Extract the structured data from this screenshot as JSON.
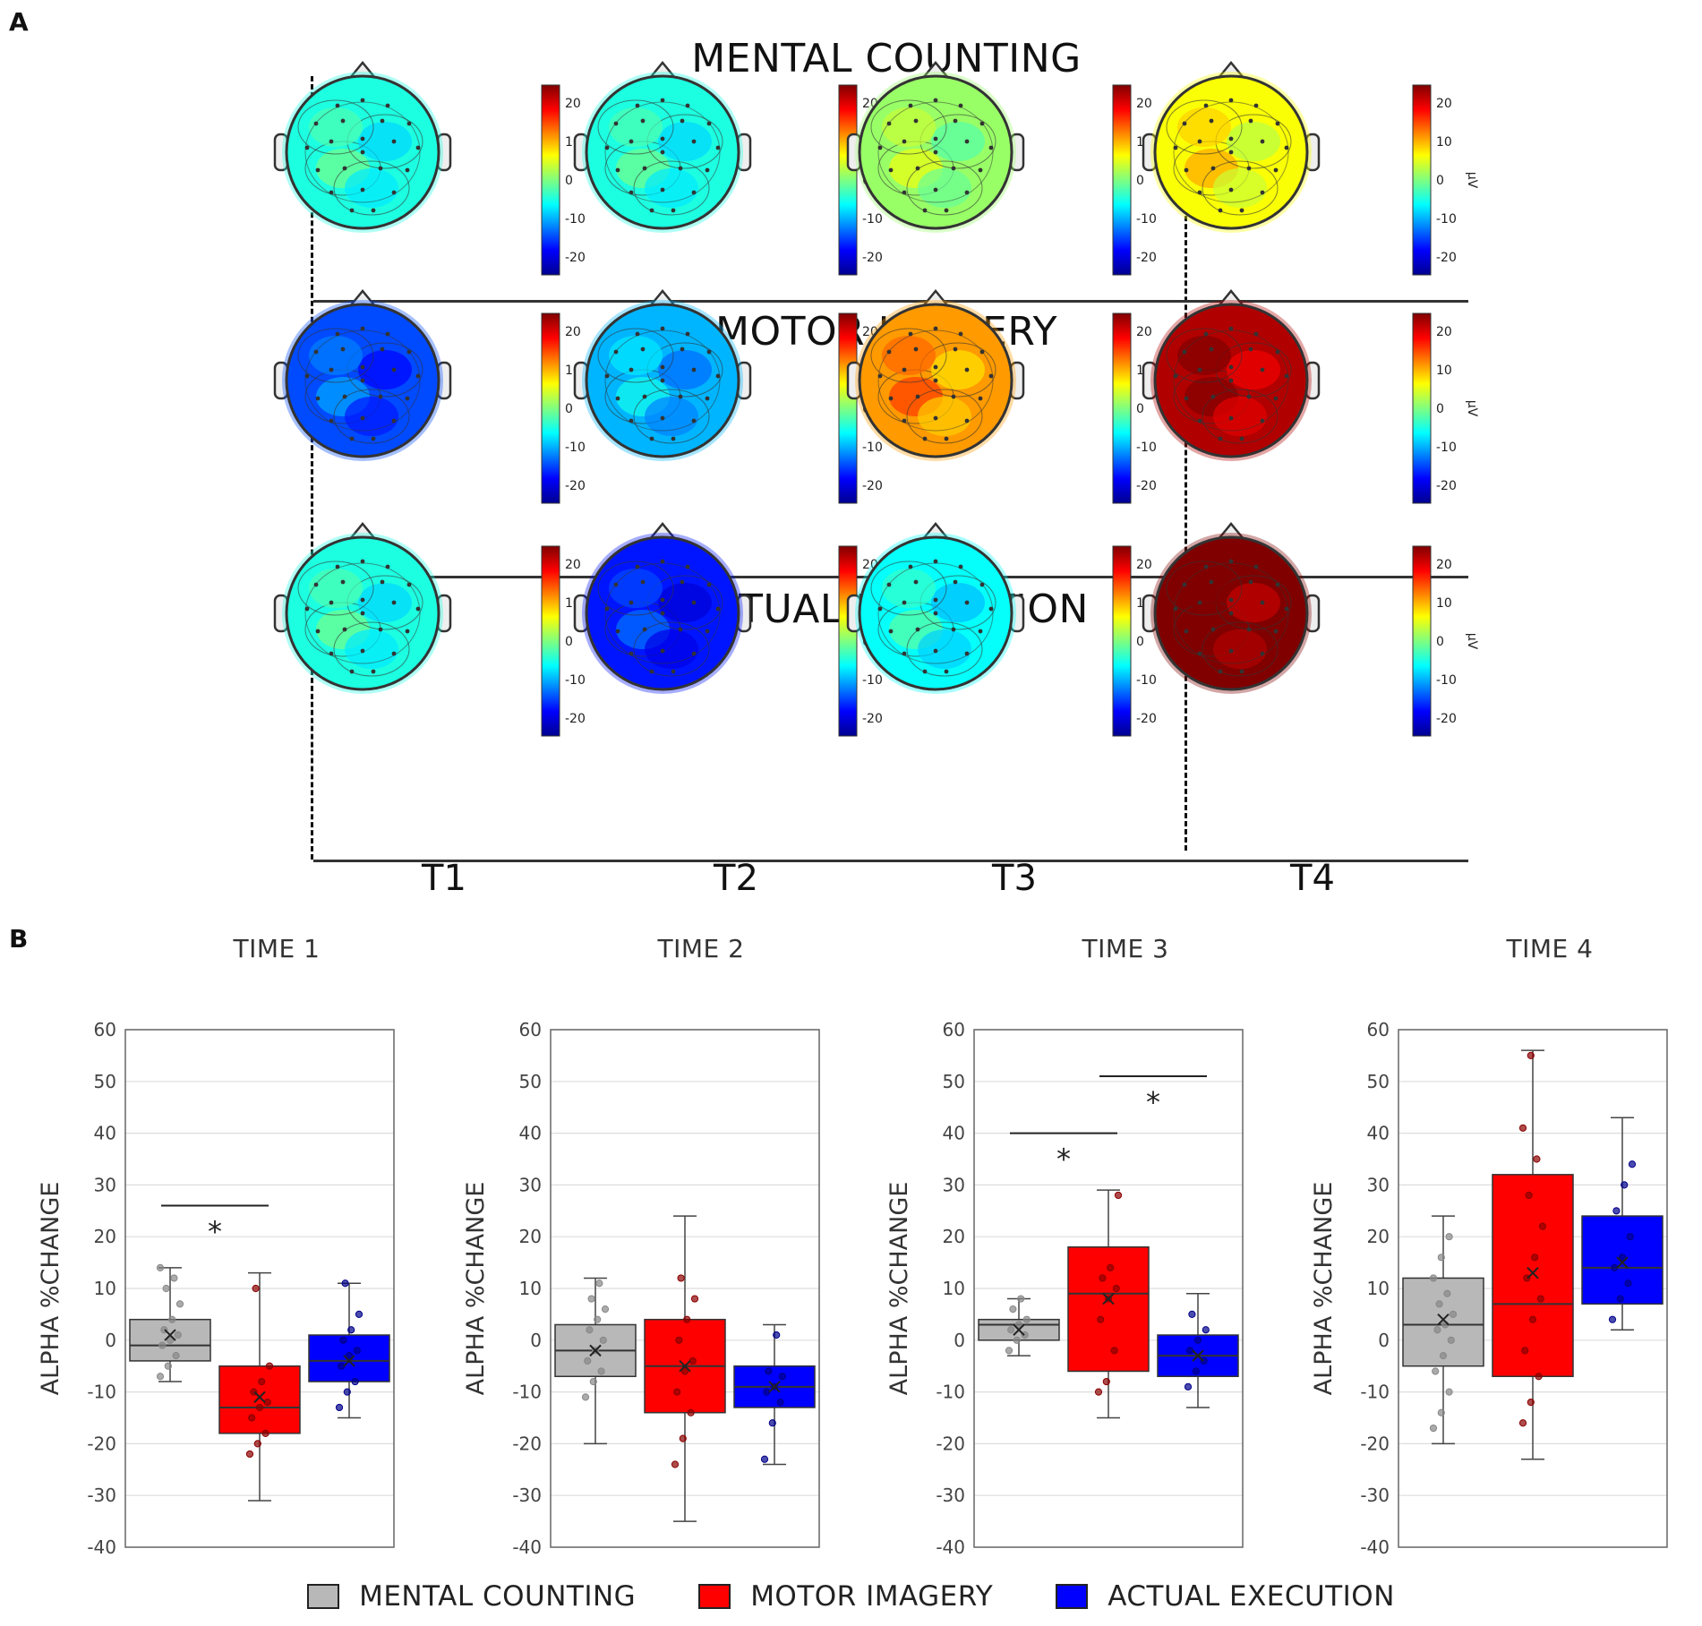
{
  "panel_a": {
    "letter": "A",
    "rows": [
      {
        "title": "MENTAL COUNTING",
        "means": [
          -4,
          -4,
          1,
          5
        ]
      },
      {
        "title": "MOTOR IMAGERY",
        "means": [
          -12,
          -8,
          9,
          18
        ]
      },
      {
        "title": "ACTUAL EXECUTION",
        "means": [
          -4,
          -14,
          -5,
          20
        ]
      }
    ],
    "time_labels": [
      "T1",
      "T2",
      "T3",
      "T4"
    ],
    "colorbar": {
      "ticks": [
        "20",
        "10",
        "0",
        "-10",
        "-20"
      ],
      "unit": "µV",
      "range": [
        -20,
        20
      ]
    }
  },
  "panel_b": {
    "letter": "B",
    "titles": [
      "TIME 1",
      "TIME 2",
      "TIME 3",
      "TIME 4"
    ],
    "ylabel": "ALPHA %CHANGE",
    "significance_marker": "*",
    "legend": [
      "MENTAL COUNTING",
      "MOTOR IMAGERY",
      "ACTUAL EXECUTION"
    ]
  },
  "colors": {
    "mental_counting": "#b8b8b8",
    "motor_imagery": "#ff0000",
    "actual_execution": "#0000ff"
  },
  "chart_data": [
    {
      "type": "box",
      "title": "TIME 1",
      "ylabel": "ALPHA %CHANGE",
      "ylim": [
        -40,
        60
      ],
      "yticks": [
        -40,
        -30,
        -20,
        -10,
        0,
        10,
        20,
        30,
        40,
        50,
        60
      ],
      "categories": [
        "MENTAL COUNTING",
        "MOTOR IMAGERY",
        "ACTUAL EXECUTION"
      ],
      "boxes": [
        {
          "whisker_low": -8,
          "q1": -4,
          "median": -1,
          "q3": 4,
          "whisker_high": 14,
          "mean": 1,
          "points": [
            -7,
            -5,
            -3,
            -1,
            0,
            1,
            2,
            4,
            7,
            10,
            12,
            14
          ]
        },
        {
          "whisker_low": -31,
          "q1": -18,
          "median": -13,
          "q3": -5,
          "whisker_high": 13,
          "mean": -11,
          "points": [
            -22,
            -20,
            -18,
            -15,
            -13,
            -12,
            -10,
            -8,
            -5,
            10
          ]
        },
        {
          "whisker_low": -15,
          "q1": -8,
          "median": -4,
          "q3": 1,
          "whisker_high": 11,
          "mean": -4,
          "points": [
            -13,
            -10,
            -8,
            -5,
            -3,
            -2,
            0,
            2,
            5,
            11
          ]
        }
      ],
      "significance": [
        {
          "from": 0,
          "to": 1,
          "y": 26,
          "label": "*"
        }
      ]
    },
    {
      "type": "box",
      "title": "TIME 2",
      "ylabel": "ALPHA %CHANGE",
      "ylim": [
        -40,
        60
      ],
      "yticks": [
        -40,
        -30,
        -20,
        -10,
        0,
        10,
        20,
        30,
        40,
        50,
        60
      ],
      "categories": [
        "MENTAL COUNTING",
        "MOTOR IMAGERY",
        "ACTUAL EXECUTION"
      ],
      "boxes": [
        {
          "whisker_low": -20,
          "q1": -7,
          "median": -2,
          "q3": 3,
          "whisker_high": 12,
          "mean": -2,
          "points": [
            -11,
            -8,
            -6,
            -4,
            -2,
            0,
            2,
            4,
            6,
            8,
            11
          ]
        },
        {
          "whisker_low": -35,
          "q1": -14,
          "median": -5,
          "q3": 4,
          "whisker_high": 24,
          "mean": -5,
          "points": [
            -24,
            -19,
            -14,
            -10,
            -6,
            -4,
            0,
            4,
            8,
            12
          ]
        },
        {
          "whisker_low": -24,
          "q1": -13,
          "median": -9,
          "q3": -5,
          "whisker_high": 3,
          "mean": -9,
          "points": [
            -23,
            -16,
            -12,
            -10,
            -9,
            -7,
            -6,
            1
          ]
        }
      ],
      "significance": []
    },
    {
      "type": "box",
      "title": "TIME 3",
      "ylabel": "ALPHA %CHANGE",
      "ylim": [
        -40,
        60
      ],
      "yticks": [
        -40,
        -30,
        -20,
        -10,
        0,
        10,
        20,
        30,
        40,
        50,
        60
      ],
      "categories": [
        "MENTAL COUNTING",
        "MOTOR IMAGERY",
        "ACTUAL EXECUTION"
      ],
      "boxes": [
        {
          "whisker_low": -3,
          "q1": 0,
          "median": 3,
          "q3": 4,
          "whisker_high": 8,
          "mean": 2,
          "points": [
            -2,
            0,
            1,
            2,
            3,
            4,
            6,
            8
          ]
        },
        {
          "whisker_low": -15,
          "q1": -6,
          "median": 9,
          "q3": 18,
          "whisker_high": 29,
          "mean": 8,
          "points": [
            -10,
            -8,
            -2,
            4,
            8,
            10,
            12,
            14,
            28
          ]
        },
        {
          "whisker_low": -13,
          "q1": -7,
          "median": -3,
          "q3": 1,
          "whisker_high": 9,
          "mean": -3,
          "points": [
            -9,
            -6,
            -4,
            -2,
            0,
            2,
            5
          ]
        }
      ],
      "significance": [
        {
          "from": 0,
          "to": 1,
          "y": 40,
          "label": "*"
        },
        {
          "from": 1,
          "to": 2,
          "y": 51,
          "label": "*"
        }
      ]
    },
    {
      "type": "box",
      "title": "TIME 4",
      "ylabel": "ALPHA %CHANGE",
      "ylim": [
        -40,
        60
      ],
      "yticks": [
        -40,
        -30,
        -20,
        -10,
        0,
        10,
        20,
        30,
        40,
        50,
        60
      ],
      "categories": [
        "MENTAL COUNTING",
        "MOTOR IMAGERY",
        "ACTUAL EXECUTION"
      ],
      "boxes": [
        {
          "whisker_low": -20,
          "q1": -5,
          "median": 3,
          "q3": 12,
          "whisker_high": 24,
          "mean": 4,
          "points": [
            -17,
            -14,
            -10,
            -6,
            -3,
            0,
            2,
            3,
            5,
            7,
            9,
            12,
            16,
            20
          ]
        },
        {
          "whisker_low": -23,
          "q1": -7,
          "median": 7,
          "q3": 32,
          "whisker_high": 56,
          "mean": 13,
          "points": [
            -16,
            -12,
            -7,
            -2,
            4,
            8,
            12,
            16,
            22,
            28,
            35,
            41,
            55
          ]
        },
        {
          "whisker_low": 2,
          "q1": 7,
          "median": 14,
          "q3": 24,
          "whisker_high": 43,
          "mean": 15,
          "points": [
            4,
            8,
            11,
            14,
            16,
            20,
            25,
            30,
            34
          ]
        }
      ],
      "significance": []
    }
  ]
}
